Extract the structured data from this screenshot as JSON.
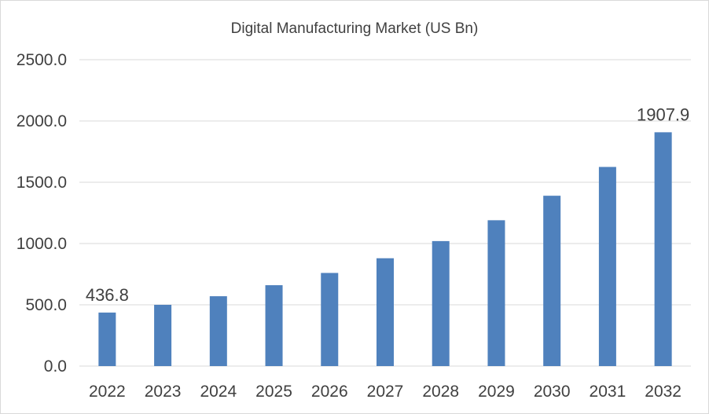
{
  "chart_data": {
    "type": "bar",
    "title": "Digital Manufacturing Market (US Bn)",
    "categories": [
      "2022",
      "2023",
      "2024",
      "2025",
      "2026",
      "2027",
      "2028",
      "2029",
      "2030",
      "2031",
      "2032"
    ],
    "values": [
      436.8,
      500,
      570,
      660,
      760,
      880,
      1020,
      1190,
      1390,
      1625,
      1907.9
    ],
    "data_labels": [
      "436.8",
      "",
      "",
      "",
      "",
      "",
      "",
      "",
      "",
      "",
      "1907.9"
    ],
    "ylim": [
      0,
      2500
    ],
    "yticks": [
      "0.0",
      "500.0",
      "1000.0",
      "1500.0",
      "2000.0",
      "2500.0"
    ],
    "ytick_values": [
      0,
      500,
      1000,
      1500,
      2000,
      2500
    ],
    "xlabel": "",
    "ylabel": "",
    "grid": true,
    "legend": "none",
    "bar_color": "#4f81bd"
  }
}
